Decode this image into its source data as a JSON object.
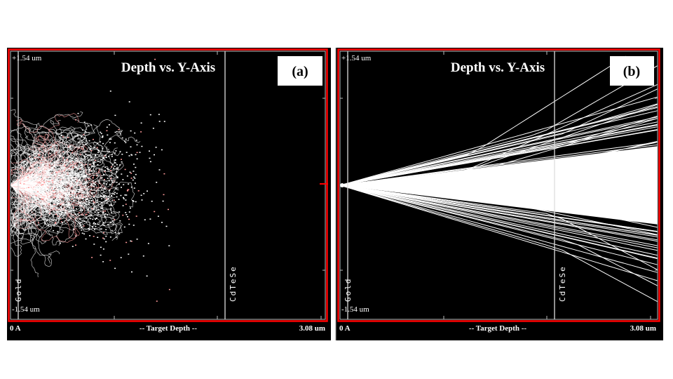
{
  "chart_data": [
    {
      "type": "scatter",
      "panel_label": "(a)",
      "title": "Depth vs. Y-Axis",
      "xlabel": "-- Target Depth --",
      "x_min_label": "0 A",
      "x_max_label": "3.08 um",
      "y_max_label": "+1.54 um",
      "y_min_label": "-1.54 um",
      "xlim_um": [
        0,
        3.08
      ],
      "ylim_um": [
        -1.54,
        1.54
      ],
      "layers": [
        {
          "name": "Gold",
          "boundary_um": 0.08
        },
        {
          "name": "CdTeSe",
          "boundary_um": 2.0
        }
      ],
      "description_values": {
        "max_depth_um": 1.55,
        "lateral_spread_um": 1.0,
        "trajectories": 220
      },
      "colors": {
        "frame": "#ff0000",
        "background": "#000000",
        "tracks": "#ffffff",
        "vacancies": "#ff9a9a"
      }
    },
    {
      "type": "line",
      "panel_label": "(b)",
      "title": "Depth vs. Y-Axis",
      "xlabel": "-- Target Depth --",
      "x_min_label": "0 A",
      "x_max_label": "3.08 um",
      "y_max_label": "+1.54 um",
      "y_min_label": "-1.54 um",
      "xlim_um": [
        0,
        3.08
      ],
      "ylim_um": [
        -1.54,
        1.54
      ],
      "layers": [
        {
          "name": "Gold",
          "boundary_um": 0.08
        },
        {
          "name": "CdTeSe",
          "boundary_um": 2.0
        }
      ],
      "description_values": {
        "core_half_spread_at_max_um": 0.45,
        "max_half_spread_um": 1.1,
        "trajectories": 70
      },
      "colors": {
        "frame": "#ff0000",
        "background": "#000000",
        "tracks": "#ffffff"
      }
    }
  ]
}
